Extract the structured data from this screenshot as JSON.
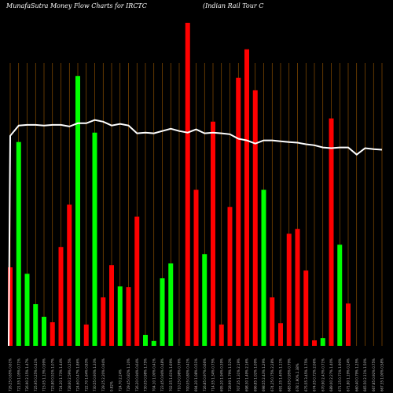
{
  "chart_data": {
    "type": "bar",
    "title": "MunafaSutra  Money Flow  Charts for IRCTC",
    "subtitle": "(Indian  Rail Tour C",
    "colors": {
      "up": "#00ff00",
      "down": "#ff0000",
      "line": "#ffffff",
      "grid": "#a05a00",
      "background": "#000000"
    },
    "ylim": [
      0,
      100
    ],
    "categories": [
      "726.25 0.65% 0.61%",
      "721.55 1.05% 0.71%",
      "726.90 2.15% 1.47%",
      "725.95 0.25% 0.41%",
      "715.05 1.13% 0.99%",
      "723.80 0.51% 1.07%",
      "724.20 1.73% 1.44%",
      "728.60 2.59% 0.25%",
      "724.60 0.47% 1.86%",
      "722.70 1.64% 0.83%",
      "730.55 0.93% 1.33%",
      "729.25 2.20% 0.94%",
      "0.82%",
      "724.70 2.24%",
      "729.45 0.82% 1.10%",
      "726.20 0.94% 0.64%",
      "730.05 0.98% 1.75%",
      "704.10 1.00% 0.41%",
      "723.45 0.94% 0.48%",
      "702.55 1.61% 1.69%",
      "710.25 0.98% 0.76%",
      "700.05 0.80% 0.41%",
      "694.20 1.08% 0.51%",
      "726.85 0.97% 0.66%",
      "714.55 1.34% 0.75%",
      "695.20 1.94% 0.39%",
      "728.99 1.79% 1.52%",
      "707.35 1.31% 2.19%",
      "698.30 1.49% 2.16%",
      "696.85 1.02% 1.09%",
      "698.55 2.43% 1.29%",
      "674.25 0.75% 2.28%",
      "691.35 1.40% 1.11%",
      "683.05 0.95% 0.79%",
      "678 1.90% 2.38%",
      "675.55 3.45% 1.75%",
      "674.05 0.72% 2.06%",
      "670.90 2.43% 0.71%",
      "689.00 2.27% 1.40%",
      "671.15 0.71% 1.90%",
      "671.80 1.19% 0.24%",
      "660.40 0.79% 1.25%",
      "665.50 2.11% 1.50%",
      "667.85 0.92% 0.75%",
      "667.35 1.00% 0.58%"
    ],
    "bars": [
      {
        "color": "down",
        "value": 24.3
      },
      {
        "color": "up",
        "value": 63.1
      },
      {
        "color": "up",
        "value": 22.3
      },
      {
        "color": "up",
        "value": 12.9
      },
      {
        "color": "up",
        "value": 9.0
      },
      {
        "color": "down",
        "value": 7.3
      },
      {
        "color": "down",
        "value": 30.6
      },
      {
        "color": "down",
        "value": 43.7
      },
      {
        "color": "up",
        "value": 83.5
      },
      {
        "color": "down",
        "value": 6.6
      },
      {
        "color": "up",
        "value": 66.0
      },
      {
        "color": "down",
        "value": 15.0
      },
      {
        "color": "down",
        "value": 25.0
      },
      {
        "color": "up",
        "value": 18.4
      },
      {
        "color": "down",
        "value": 18.2
      },
      {
        "color": "down",
        "value": 40.0
      },
      {
        "color": "up",
        "value": 3.4
      },
      {
        "color": "up",
        "value": 1.5
      },
      {
        "color": "up",
        "value": 20.9
      },
      {
        "color": "up",
        "value": 25.5
      },
      {
        "color": "up",
        "value": 0
      },
      {
        "color": "down",
        "value": 100.0
      },
      {
        "color": "down",
        "value": 48.3
      },
      {
        "color": "up",
        "value": 28.4
      },
      {
        "color": "down",
        "value": 69.4
      },
      {
        "color": "down",
        "value": 6.6
      },
      {
        "color": "down",
        "value": 43.0
      },
      {
        "color": "down",
        "value": 83.0
      },
      {
        "color": "down",
        "value": 91.8
      },
      {
        "color": "down",
        "value": 79.1
      },
      {
        "color": "up",
        "value": 48.3
      },
      {
        "color": "down",
        "value": 15.0
      },
      {
        "color": "down",
        "value": 7.0
      },
      {
        "color": "down",
        "value": 34.7
      },
      {
        "color": "down",
        "value": 36.2
      },
      {
        "color": "down",
        "value": 23.3
      },
      {
        "color": "down",
        "value": 1.7
      },
      {
        "color": "up",
        "value": 2.4
      },
      {
        "color": "down",
        "value": 70.4
      },
      {
        "color": "up",
        "value": 31.3
      },
      {
        "color": "down",
        "value": 13.1
      },
      {
        "color": "up",
        "value": 0
      },
      {
        "color": "up",
        "value": 0
      },
      {
        "color": "up",
        "value": 0
      },
      {
        "color": "up",
        "value": 0
      }
    ],
    "line_values": [
      65.0,
      68.2,
      68.4,
      68.4,
      68.2,
      68.4,
      68.4,
      67.9,
      68.9,
      68.9,
      69.9,
      69.4,
      68.2,
      68.7,
      68.2,
      65.8,
      66.0,
      65.8,
      66.5,
      67.2,
      66.5,
      66.0,
      67.0,
      65.8,
      66.0,
      65.8,
      65.5,
      64.1,
      63.6,
      62.6,
      63.6,
      63.6,
      63.3,
      63.1,
      62.9,
      62.4,
      62.1,
      61.4,
      61.2,
      61.4,
      61.4,
      59.2,
      61.2,
      60.9,
      60.7
    ],
    "grid": true
  }
}
